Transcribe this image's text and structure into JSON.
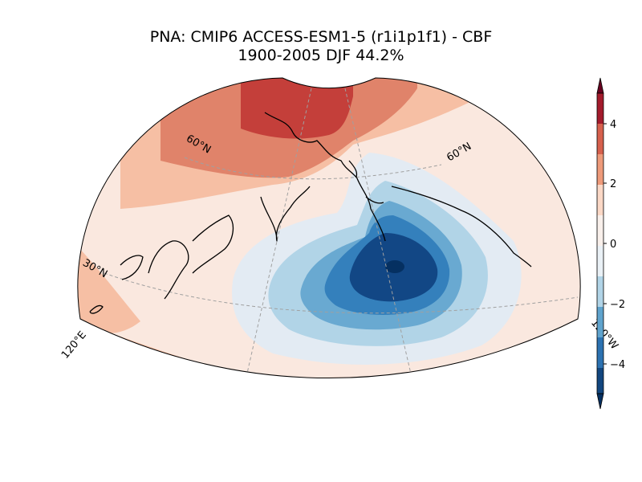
{
  "title": {
    "line1": "PNA: CMIP6 ACCESS-ESM1-5 (r1i1p1f1) - CBF",
    "line2": "1900-2005 DJF 44.2%"
  },
  "map": {
    "projection": "conic sector (120°E–120°W, ~20°N–90°N)",
    "gridline_labels": {
      "lat60_left": "60°N",
      "lat60_right": "60°N",
      "lat30_left": "30°N",
      "lon_left": "120°E",
      "lon_right": "120°W"
    },
    "pattern": "negative centre (dark blue) over North Pacific south of Alaska; positive (red) over northeast Siberia"
  },
  "colorbar": {
    "ticks": [
      "4",
      "2",
      "0",
      "−2",
      "−4"
    ],
    "tick_values": [
      4,
      2,
      0,
      -2,
      -4
    ],
    "range": [
      -5,
      5
    ],
    "levels": [
      -5,
      -4,
      -3,
      -2,
      -1,
      1,
      2,
      3,
      4,
      5
    ],
    "colors": [
      "#053061",
      "#2166ac",
      "#4393c3",
      "#92c5de",
      "#d1e5f0",
      "#f7f7f7",
      "#fddbc7",
      "#f4a582",
      "#d6604d",
      "#b2182b",
      "#67001f"
    ],
    "extend": "both"
  }
}
